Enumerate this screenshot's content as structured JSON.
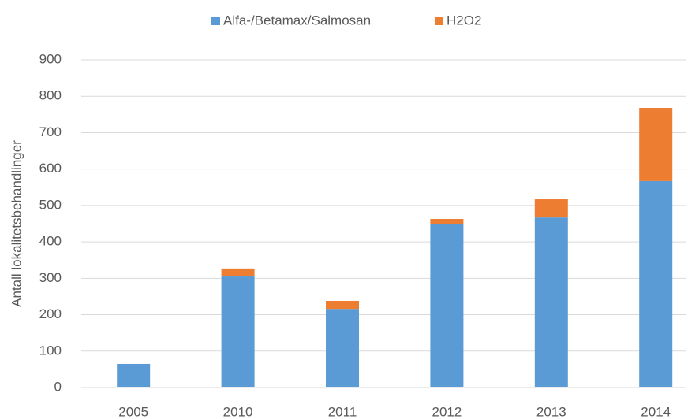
{
  "chart_data": {
    "type": "stacked_bar",
    "y_label": "Antall lokalitetsbehandlinger",
    "categories": [
      "2005",
      "2010",
      "2011",
      "2012",
      "2013",
      "2014"
    ],
    "series": [
      {
        "name": "Alfa-/Betamax/Salmosan",
        "color": "#5b9bd5",
        "values": [
          65,
          305,
          216,
          448,
          467,
          567
        ]
      },
      {
        "name": "H2O2",
        "color": "#ed7d31",
        "values": [
          0,
          22,
          22,
          15,
          50,
          201
        ]
      }
    ],
    "ylim": [
      0,
      900
    ],
    "yticks": [
      0,
      100,
      200,
      300,
      400,
      500,
      600,
      700,
      800,
      900
    ],
    "grid": true,
    "legend": "top"
  }
}
